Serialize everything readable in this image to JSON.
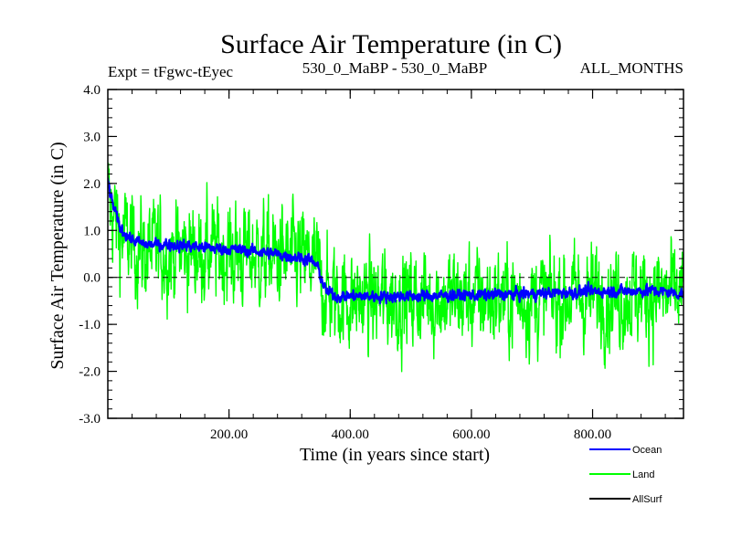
{
  "chart_data": {
    "type": "line",
    "title": "Surface Air Temperature (in C)",
    "subtitle_left": "Expt = tFgwc-tEyec",
    "subtitle_center": "530_0_MaBP - 530_0_MaBP",
    "subtitle_right": "ALL_MONTHS",
    "xlabel": "Time (in years since start)",
    "ylabel": "Surface Air Temperature (in C)",
    "xlim": [
      0,
      950
    ],
    "ylim": [
      -3.0,
      4.0
    ],
    "x_ticks": [
      200,
      400,
      600,
      800
    ],
    "x_tick_labels": [
      "200.00",
      "400.00",
      "600.00",
      "800.00"
    ],
    "y_ticks": [
      4.0,
      3.0,
      2.0,
      1.0,
      0.0,
      -1.0,
      -2.0,
      -3.0
    ],
    "y_tick_labels": [
      "4.0",
      "3.0",
      "2.0",
      "1.0",
      "0.0",
      "-1.0",
      "-2.0",
      "-3.0"
    ],
    "reference_line": {
      "y": 0.0,
      "style": "dashed"
    },
    "series": [
      {
        "name": "Land",
        "color": "#00ff00",
        "noise_amplitude": 0.7,
        "trend_x": [
          0,
          5,
          20,
          40,
          60,
          100,
          150,
          200,
          250,
          300,
          330,
          345,
          360,
          380,
          450,
          500,
          600,
          700,
          800,
          900,
          950
        ],
        "trend_y": [
          1.7,
          1.5,
          0.95,
          0.7,
          0.55,
          0.55,
          0.55,
          0.5,
          0.45,
          0.4,
          0.35,
          0.2,
          -0.35,
          -0.45,
          -0.5,
          -0.45,
          -0.45,
          -0.45,
          -0.4,
          -0.35,
          -0.4
        ]
      },
      {
        "name": "Ocean",
        "color": "#0000ff",
        "noise_amplitude": 0.08,
        "trend_x": [
          0,
          5,
          20,
          40,
          60,
          100,
          150,
          200,
          250,
          300,
          330,
          345,
          360,
          380,
          450,
          500,
          600,
          700,
          800,
          900,
          950
        ],
        "trend_y": [
          2.1,
          1.7,
          1.05,
          0.8,
          0.7,
          0.7,
          0.65,
          0.6,
          0.55,
          0.45,
          0.4,
          0.25,
          -0.3,
          -0.4,
          -0.4,
          -0.4,
          -0.38,
          -0.35,
          -0.3,
          -0.28,
          -0.35
        ]
      },
      {
        "name": "AllSurf",
        "color": "#000000"
      }
    ],
    "legend": [
      {
        "name": "Ocean",
        "color": "#0000ff"
      },
      {
        "name": "Land",
        "color": "#00ff00"
      },
      {
        "name": "AllSurf",
        "color": "#000000"
      }
    ],
    "legend_position": "bottom-right"
  }
}
